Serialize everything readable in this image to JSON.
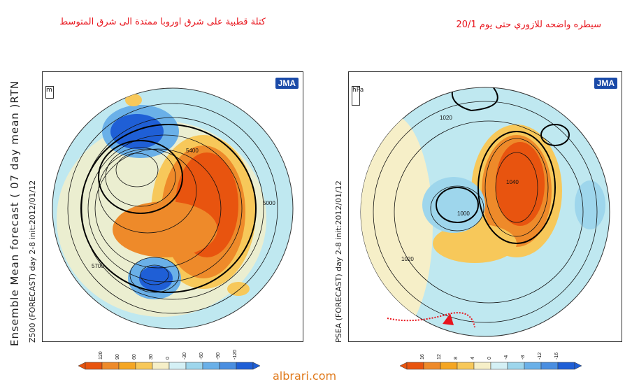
{
  "annotations": {
    "left_text": "كتلة قطبية على شرق اوروبا ممتدة الى شرق المتوسط",
    "right_text": "سيطره واضحه للازوري حتى يوم 20/1"
  },
  "left_panel": {
    "vertical_title": "Ensemble Mean forecast ( 07 day mean )RTN",
    "vertical_sub": "Z500 (FORECAST) day 2-8 init:2012/01/12",
    "unit_label": "m",
    "logo_text": "JMA",
    "contour_labels": [
      "5400",
      "5700",
      "5000"
    ],
    "colorbar_ticks": [
      "120",
      "90",
      "60",
      "30",
      "0",
      "-30",
      "-60",
      "-90",
      "-120"
    ]
  },
  "right_panel": {
    "vertical_sub": "PSEA (FORECAST) day 2-8 init:2012/01/12",
    "unit_label": "hPa",
    "logo_text": "JMA",
    "contour_labels": [
      "1020",
      "1040",
      "1020",
      "1000"
    ],
    "colorbar_ticks": [
      "16",
      "12",
      "8",
      "4",
      "0",
      "-4",
      "-8",
      "-12",
      "-16"
    ]
  },
  "colors": {
    "annotation_red": "#e8141c",
    "positive_anomaly": "#e8540f",
    "negative_anomaly": "#1f5fd6",
    "ocean_light": "#bfe8f0",
    "site_text": "#e07a1c"
  },
  "site": "albrari.com"
}
